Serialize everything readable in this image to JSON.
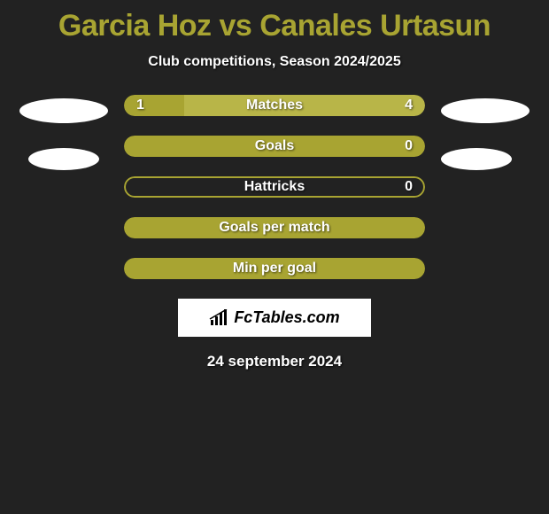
{
  "title": "Garcia Hoz vs Canales Urtasun",
  "subtitle": "Club competitions, Season 2024/2025",
  "date": "24 september 2024",
  "logo_text": "FcTables.com",
  "colors": {
    "background": "#222222",
    "accent": "#a8a432",
    "bar_primary": "#a8a432",
    "bar_secondary": "#b8b548",
    "bar_border": "#a8a432",
    "text": "#ffffff"
  },
  "stats": [
    {
      "label": "Matches",
      "left_value": "1",
      "right_value": "4",
      "left_pct": 20,
      "right_pct": 80,
      "left_color": "#a8a432",
      "right_color": "#b8b548",
      "show_values": true
    },
    {
      "label": "Goals",
      "left_value": "",
      "right_value": "0",
      "left_pct": 100,
      "right_pct": 0,
      "left_color": "#a8a432",
      "right_color": "#a8a432",
      "show_values": true,
      "full": true
    },
    {
      "label": "Hattricks",
      "left_value": "",
      "right_value": "0",
      "left_pct": 0,
      "right_pct": 0,
      "left_color": "#a8a432",
      "right_color": "#a8a432",
      "show_values": true,
      "empty_outline": true
    },
    {
      "label": "Goals per match",
      "left_value": "",
      "right_value": "",
      "left_pct": 100,
      "right_pct": 0,
      "left_color": "#a8a432",
      "right_color": "#a8a432",
      "show_values": false,
      "full": true
    },
    {
      "label": "Min per goal",
      "left_value": "",
      "right_value": "",
      "left_pct": 100,
      "right_pct": 0,
      "left_color": "#a8a432",
      "right_color": "#a8a432",
      "show_values": false,
      "full": true
    }
  ]
}
